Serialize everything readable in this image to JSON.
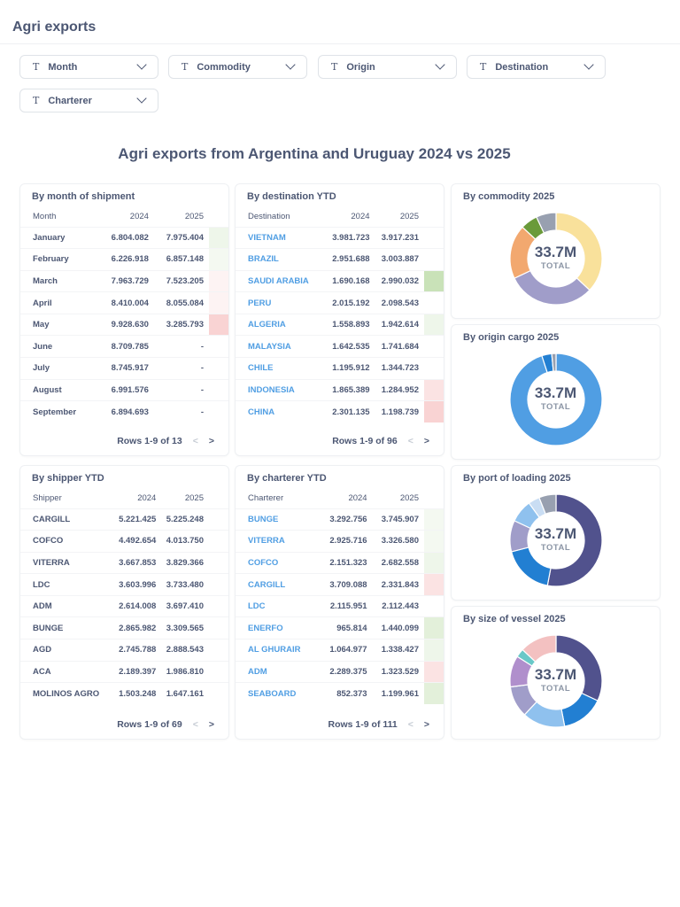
{
  "header": {
    "title": "Agri exports"
  },
  "filters": [
    "Month",
    "Commodity",
    "Origin",
    "Destination",
    "Charterer"
  ],
  "dashboard_title": "Agri exports from Argentina and Uruguay 2024 vs 2025",
  "tables": {
    "month": {
      "title": "By month of shipment",
      "columns": [
        "Month",
        "2024",
        "2025"
      ],
      "rows": [
        [
          "January",
          "6.804.082",
          "7.975.404"
        ],
        [
          "February",
          "6.226.918",
          "6.857.148"
        ],
        [
          "March",
          "7.963.729",
          "7.523.205"
        ],
        [
          "April",
          "8.410.004",
          "8.055.084"
        ],
        [
          "May",
          "9.928.630",
          "3.285.793"
        ],
        [
          "June",
          "8.709.785",
          "-"
        ],
        [
          "July",
          "8.745.917",
          "-"
        ],
        [
          "August",
          "6.991.576",
          "-"
        ],
        [
          "September",
          "6.894.693",
          "-"
        ]
      ],
      "bars": [
        "#eef6ea",
        "#f4f9f1",
        "#fdf3f3",
        "#fdf3f3",
        "#f9d3d3",
        "",
        "",
        "",
        ""
      ],
      "pager": "Rows 1-9 of 13"
    },
    "destination": {
      "title": "By destination YTD",
      "columns": [
        "Destination",
        "2024",
        "2025"
      ],
      "rows": [
        [
          "VIETNAM",
          "3.981.723",
          "3.917.231"
        ],
        [
          "BRAZIL",
          "2.951.688",
          "3.003.887"
        ],
        [
          "SAUDI ARABIA",
          "1.690.168",
          "2.990.032"
        ],
        [
          "PERU",
          "2.015.192",
          "2.098.543"
        ],
        [
          "ALGERIA",
          "1.558.893",
          "1.942.614"
        ],
        [
          "MALAYSIA",
          "1.642.535",
          "1.741.684"
        ],
        [
          "CHILE",
          "1.195.912",
          "1.344.723"
        ],
        [
          "INDONESIA",
          "1.865.389",
          "1.284.952"
        ],
        [
          "CHINA",
          "2.301.135",
          "1.198.739"
        ]
      ],
      "bars": [
        "",
        "",
        "#c9e2b8",
        "",
        "#eef6ea",
        "",
        "",
        "#fbe3e3",
        "#f9d3d3"
      ],
      "pager": "Rows 1-9 of 96",
      "link": true
    },
    "shipper": {
      "title": "By shipper YTD",
      "columns": [
        "Shipper",
        "2024",
        "2025"
      ],
      "rows": [
        [
          "CARGILL",
          "5.221.425",
          "5.225.248"
        ],
        [
          "COFCO",
          "4.492.654",
          "4.013.750"
        ],
        [
          "VITERRA",
          "3.667.853",
          "3.829.366"
        ],
        [
          "LDC",
          "3.603.996",
          "3.733.480"
        ],
        [
          "ADM",
          "2.614.008",
          "3.697.410"
        ],
        [
          "BUNGE",
          "2.865.982",
          "3.309.565"
        ],
        [
          "AGD",
          "2.745.788",
          "2.888.543"
        ],
        [
          "ACA",
          "2.189.397",
          "1.986.810"
        ],
        [
          "MOLINOS AGRO",
          "1.503.248",
          "1.647.161"
        ]
      ],
      "bars": [
        "",
        "",
        "",
        "",
        "",
        "",
        "",
        "",
        ""
      ],
      "pager": "Rows 1-9 of 69"
    },
    "charterer": {
      "title": "By charterer YTD",
      "columns": [
        "Charterer",
        "2024",
        "2025"
      ],
      "rows": [
        [
          "BUNGE",
          "3.292.756",
          "3.745.907"
        ],
        [
          "VITERRA",
          "2.925.716",
          "3.326.580"
        ],
        [
          "COFCO",
          "2.151.323",
          "2.682.558"
        ],
        [
          "CARGILL",
          "3.709.088",
          "2.331.843"
        ],
        [
          "LDC",
          "2.115.951",
          "2.112.443"
        ],
        [
          "ENERFO",
          "965.814",
          "1.440.099"
        ],
        [
          "AL GHURAIR",
          "1.064.977",
          "1.338.427"
        ],
        [
          "ADM",
          "2.289.375",
          "1.323.529"
        ],
        [
          "SEABOARD",
          "852.373",
          "1.199.961"
        ]
      ],
      "bars": [
        "#f4f9f1",
        "#f4f9f1",
        "#eef6ea",
        "#fbe3e3",
        "",
        "#e3f0da",
        "#eef6ea",
        "#fbe3e3",
        "#e3f0da"
      ],
      "pager": "Rows 1-9 of 111",
      "link": true
    }
  },
  "chart_data": [
    {
      "type": "pie",
      "title": "By commodity 2025",
      "total": "33.7M",
      "total_label": "TOTAL",
      "values": [
        0.37,
        0.31,
        0.19,
        0.06,
        0.07
      ],
      "colors": [
        "#f9e19b",
        "#a09dc9",
        "#f2a86f",
        "#6a9a3a",
        "#98a0b0"
      ]
    },
    {
      "type": "pie",
      "title": "By origin cargo 2025",
      "total": "33.7M",
      "total_label": "TOTAL",
      "values": [
        0.95,
        0.035,
        0.015
      ],
      "colors": [
        "#509ee3",
        "#227fd2",
        "#98a0b0"
      ]
    },
    {
      "type": "pie",
      "title": "By port of loading 2025",
      "total": "33.7M",
      "total_label": "TOTAL",
      "values": [
        0.53,
        0.18,
        0.11,
        0.08,
        0.04,
        0.06
      ],
      "colors": [
        "#51528d",
        "#227fd2",
        "#a09dc9",
        "#8fc1ee",
        "#c9ddf3",
        "#98a0b0"
      ]
    },
    {
      "type": "pie",
      "title": "By size of vessel 2025",
      "total": "33.7M",
      "total_label": "TOTAL",
      "values": [
        0.32,
        0.15,
        0.15,
        0.11,
        0.11,
        0.03,
        0.13
      ],
      "colors": [
        "#51528d",
        "#227fd2",
        "#8fc1ee",
        "#a09dc9",
        "#b08fcc",
        "#69c8c8",
        "#f3c1c1"
      ]
    }
  ]
}
